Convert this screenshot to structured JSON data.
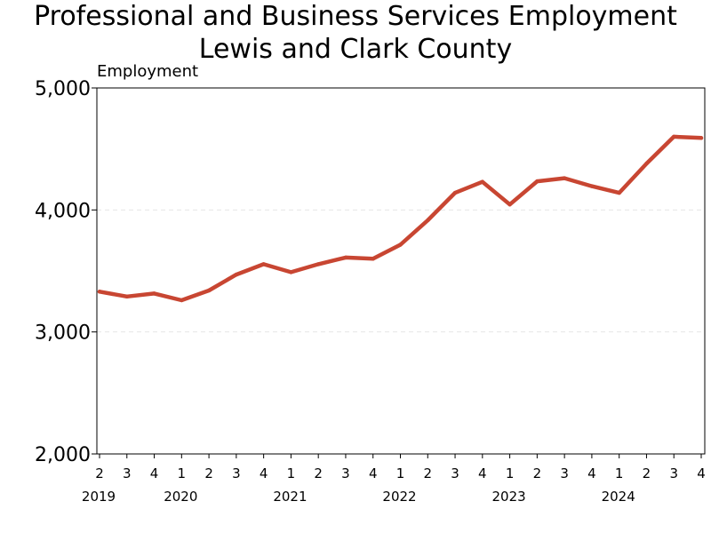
{
  "chart_data": {
    "type": "line",
    "title": [
      "Professional and Business Services Employment",
      "Lewis and Clark County"
    ],
    "ylabel": "Employment",
    "xlabel": "",
    "ylim": [
      2000,
      5000
    ],
    "yticks": [
      2000,
      3000,
      4000,
      5000
    ],
    "ytick_labels": [
      "2,000",
      "3,000",
      "4,000",
      "5,000"
    ],
    "grid": "horizontal dashed",
    "legend": "none",
    "x": [
      "2019 Q2",
      "2019 Q3",
      "2019 Q4",
      "2020 Q1",
      "2020 Q2",
      "2020 Q3",
      "2020 Q4",
      "2021 Q1",
      "2021 Q2",
      "2021 Q3",
      "2021 Q4",
      "2022 Q1",
      "2022 Q2",
      "2022 Q3",
      "2022 Q4",
      "2023 Q1",
      "2023 Q2",
      "2023 Q3",
      "2023 Q4",
      "2024 Q1",
      "2024 Q2",
      "2024 Q3",
      "2024 Q4"
    ],
    "quarter_labels": [
      "2",
      "3",
      "4",
      "1",
      "2",
      "3",
      "4",
      "1",
      "2",
      "3",
      "4",
      "1",
      "2",
      "3",
      "4",
      "1",
      "2",
      "3",
      "4",
      "1",
      "2",
      "3",
      "4"
    ],
    "year_labels": [
      {
        "label": "2019",
        "index": 0
      },
      {
        "label": "2020",
        "index": 3
      },
      {
        "label": "2021",
        "index": 7
      },
      {
        "label": "2022",
        "index": 11
      },
      {
        "label": "2023",
        "index": 15
      },
      {
        "label": "2024",
        "index": 19
      }
    ],
    "series": [
      {
        "color": "#C84632",
        "values": [
          3330,
          3290,
          3315,
          3260,
          3340,
          3470,
          3555,
          3490,
          3555,
          3610,
          3600,
          3715,
          3915,
          4140,
          4230,
          4045,
          4235,
          4260,
          4195,
          4140,
          4380,
          4600,
          4590
        ]
      }
    ]
  }
}
